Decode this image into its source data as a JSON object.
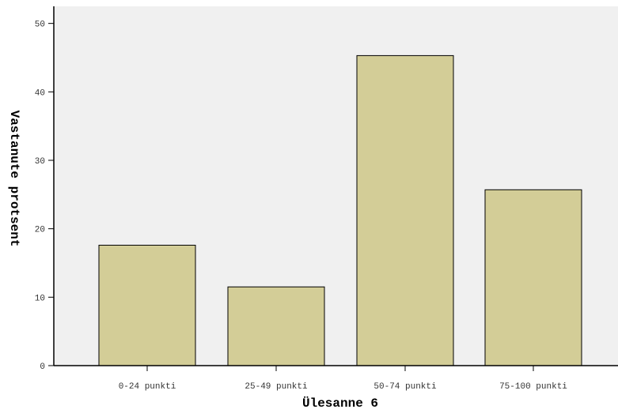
{
  "chart_data": {
    "type": "bar",
    "categories": [
      "0-24 punkti",
      "25-49 punkti",
      "50-74 punkti",
      "75-100 punkti"
    ],
    "values": [
      17.6,
      11.5,
      45.3,
      25.7
    ],
    "title": "",
    "xlabel": "Ülesanne 6",
    "ylabel": "Vastanute protsent",
    "ylim": [
      0,
      52.5
    ],
    "yticks": [
      0,
      10,
      20,
      30,
      40,
      50
    ],
    "grid": false,
    "legend": "none",
    "colors": {
      "plot_background": "#f0f0f0",
      "bar_fill": "#d3cd97",
      "bar_stroke": "#000000",
      "axis": "#000000"
    }
  }
}
